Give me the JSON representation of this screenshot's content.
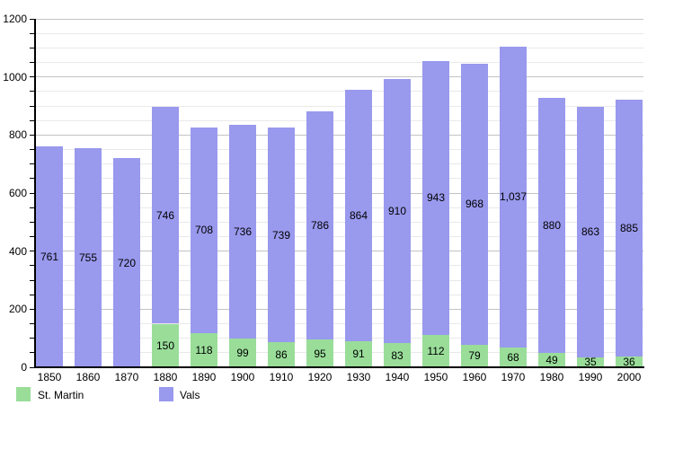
{
  "chart_data": {
    "type": "bar",
    "stacked": true,
    "title": "",
    "xlabel": "",
    "ylabel": "",
    "categories": [
      "1850",
      "1860",
      "1870",
      "1880",
      "1890",
      "1900",
      "1910",
      "1920",
      "1930",
      "1940",
      "1950",
      "1960",
      "1970",
      "1980",
      "1990",
      "2000"
    ],
    "series": [
      {
        "name": "St. Martin",
        "color": "#99dd99",
        "values": [
          null,
          null,
          null,
          150,
          118,
          99,
          86,
          95,
          91,
          83,
          112,
          79,
          68,
          49,
          35,
          36
        ],
        "labels": [
          null,
          null,
          null,
          "150",
          "118",
          "99",
          "86",
          "95",
          "91",
          "83",
          "112",
          "79",
          "68",
          "49",
          "35",
          "36"
        ]
      },
      {
        "name": "Vals",
        "color": "#9999ee",
        "values": [
          761,
          755,
          720,
          746,
          708,
          736,
          739,
          786,
          864,
          910,
          943,
          968,
          1037,
          880,
          863,
          885
        ],
        "labels": [
          "761",
          "755",
          "720",
          "746",
          "708",
          "736",
          "739",
          "786",
          "864",
          "910",
          "943",
          "968",
          "1,037",
          "880",
          "863",
          "885"
        ]
      }
    ],
    "ylim": [
      0,
      1200
    ],
    "y_major_step": 200,
    "y_minor_step": 50,
    "y_tick_labels": [
      "0",
      "200",
      "400",
      "600",
      "800",
      "1000",
      "1200"
    ],
    "grid": true,
    "legend_position": "bottom-left",
    "colors": {
      "major_gridline": "#c3c3c3",
      "minor_gridline": "#e9e9e9",
      "axis": "#000000",
      "label_text": "#000000",
      "background": "#ffffff"
    }
  }
}
